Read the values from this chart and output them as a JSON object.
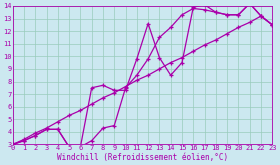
{
  "xlabel": "Windchill (Refroidissement éolien,°C)",
  "bg_color": "#cce8f0",
  "line_color": "#aa00aa",
  "grid_color": "#99ccbb",
  "xlim": [
    0,
    23
  ],
  "ylim": [
    3,
    14
  ],
  "xticks": [
    0,
    1,
    2,
    3,
    4,
    5,
    6,
    7,
    8,
    9,
    10,
    11,
    12,
    13,
    14,
    15,
    16,
    17,
    18,
    19,
    20,
    21,
    22,
    23
  ],
  "yticks": [
    3,
    4,
    5,
    6,
    7,
    8,
    9,
    10,
    11,
    12,
    13,
    14
  ],
  "line1_x": [
    0,
    1,
    2,
    3,
    4,
    5,
    6,
    7,
    8,
    9,
    10,
    11,
    12,
    13,
    14,
    15,
    16,
    17,
    18,
    19,
    20,
    21,
    22,
    23
  ],
  "line1_y": [
    3.0,
    3.3,
    3.7,
    4.2,
    4.2,
    2.8,
    2.8,
    3.3,
    4.3,
    4.5,
    7.5,
    8.5,
    9.8,
    11.5,
    12.3,
    13.3,
    13.8,
    13.7,
    13.5,
    13.3,
    13.3,
    14.2,
    13.2,
    12.5
  ],
  "line2_x": [
    0,
    1,
    2,
    3,
    4,
    5,
    6,
    7,
    8,
    9,
    10,
    11,
    12,
    13,
    14,
    15,
    16,
    17,
    18,
    19,
    20,
    21,
    22,
    23
  ],
  "line2_y": [
    3.0,
    3.3,
    3.7,
    4.2,
    4.2,
    2.8,
    2.8,
    7.5,
    7.7,
    7.3,
    7.3,
    9.8,
    12.6,
    9.9,
    8.5,
    9.5,
    13.9,
    14.1,
    13.5,
    13.3,
    13.3,
    14.2,
    13.2,
    12.5
  ],
  "line3_x": [
    0,
    1,
    2,
    3,
    4,
    5,
    6,
    7,
    8,
    9,
    10,
    11,
    12,
    13,
    14,
    15,
    16,
    17,
    18,
    19,
    20,
    21,
    22,
    23
  ],
  "line3_y": [
    3.0,
    3.4,
    3.9,
    4.3,
    4.8,
    5.3,
    5.7,
    6.2,
    6.7,
    7.1,
    7.6,
    8.1,
    8.5,
    9.0,
    9.5,
    9.9,
    10.4,
    10.9,
    11.3,
    11.8,
    12.3,
    12.7,
    13.2,
    12.5
  ]
}
